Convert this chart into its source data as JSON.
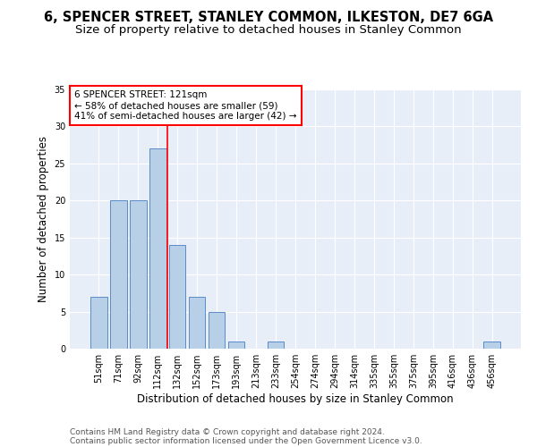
{
  "title": "6, SPENCER STREET, STANLEY COMMON, ILKESTON, DE7 6GA",
  "subtitle": "Size of property relative to detached houses in Stanley Common",
  "xlabel": "Distribution of detached houses by size in Stanley Common",
  "ylabel": "Number of detached properties",
  "categories": [
    "51sqm",
    "71sqm",
    "92sqm",
    "112sqm",
    "132sqm",
    "152sqm",
    "173sqm",
    "193sqm",
    "213sqm",
    "233sqm",
    "254sqm",
    "274sqm",
    "294sqm",
    "314sqm",
    "335sqm",
    "355sqm",
    "375sqm",
    "395sqm",
    "416sqm",
    "436sqm",
    "456sqm"
  ],
  "values": [
    7,
    20,
    20,
    27,
    14,
    7,
    5,
    1,
    0,
    1,
    0,
    0,
    0,
    0,
    0,
    0,
    0,
    0,
    0,
    0,
    1
  ],
  "bar_color": "#b8cfe8",
  "bar_edgecolor": "#5b8cc8",
  "bar_linewidth": 0.7,
  "red_line_x": 3.5,
  "annotation_line1": "6 SPENCER STREET: 121sqm",
  "annotation_line2": "← 58% of detached houses are smaller (59)",
  "annotation_line3": "41% of semi-detached houses are larger (42) →",
  "annotation_box_color": "white",
  "annotation_box_edgecolor": "red",
  "ylim": [
    0,
    35
  ],
  "yticks": [
    0,
    5,
    10,
    15,
    20,
    25,
    30,
    35
  ],
  "background_color": "#e8eef8",
  "grid_color": "white",
  "footer_line1": "Contains HM Land Registry data © Crown copyright and database right 2024.",
  "footer_line2": "Contains public sector information licensed under the Open Government Licence v3.0.",
  "title_fontsize": 10.5,
  "subtitle_fontsize": 9.5,
  "xlabel_fontsize": 8.5,
  "ylabel_fontsize": 8.5,
  "tick_fontsize": 7,
  "annotation_fontsize": 7.5,
  "footer_fontsize": 6.5
}
